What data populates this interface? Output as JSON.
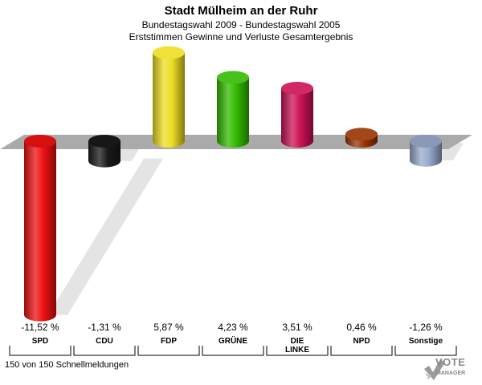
{
  "chart_data": {
    "type": "bar",
    "title": "Stadt Mülheim an der Ruhr",
    "subtitle": "Bundestagswahl 2009 - Bundestagswahl 2005",
    "subtitle2": "Erststimmen Gewinne und Verluste Gesamtergebnis",
    "categories": [
      "SPD",
      "CDU",
      "FDP",
      "GRÜNE",
      "DIE LINKE",
      "NPD",
      "Sonstige"
    ],
    "category_lines": [
      [
        "SPD"
      ],
      [
        "CDU"
      ],
      [
        "FDP"
      ],
      [
        "GRÜNE"
      ],
      [
        "DIE",
        "LINKE"
      ],
      [
        "NPD"
      ],
      [
        "Sonstige"
      ]
    ],
    "values": [
      -11.52,
      -1.31,
      5.87,
      4.23,
      3.51,
      0.46,
      -1.26
    ],
    "value_labels": [
      "-11,52 %",
      "-1,31 %",
      "5,87 %",
      "4,23 %",
      "3,51 %",
      "0,46 %",
      "-1,26 %"
    ],
    "colors": [
      "#ee1111",
      "#1a1a1a",
      "#eedd22",
      "#33bb00",
      "#cc1155",
      "#993300",
      "#99aacc"
    ],
    "legend": "none",
    "grid": false
  },
  "footer": "150 von 150 Schnellmeldungen",
  "logo": {
    "line1": "VOTE",
    "line2": "MANAGER",
    "icon": "checkmark-icon"
  }
}
